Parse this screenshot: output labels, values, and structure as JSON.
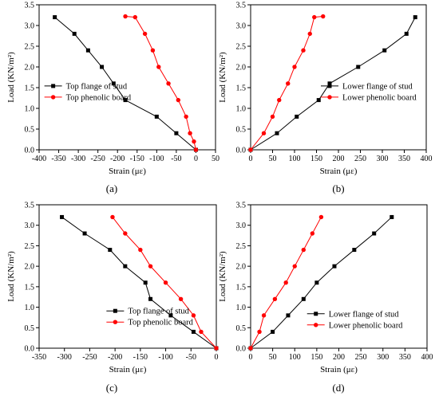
{
  "chart_data": [
    {
      "type": "line",
      "panel_label": "(a)",
      "xlabel": "Strain (με)",
      "ylabel": "Load (KN/m²)",
      "xlim": [
        -400,
        50
      ],
      "ylim": [
        0,
        3.5
      ],
      "xticks": [
        -400,
        -350,
        -300,
        -250,
        -200,
        -150,
        -100,
        -50,
        0,
        50
      ],
      "yticks": [
        0.0,
        0.5,
        1.0,
        1.5,
        2.0,
        2.5,
        3.0,
        3.5
      ],
      "ytick_labels": [
        "0.0",
        "0.5",
        "1.0",
        "1.5",
        "2.0",
        "2.5",
        "3.0",
        "3.5"
      ],
      "legend_position": "center-left",
      "series": [
        {
          "name": "Top flange of stud",
          "color": "#000000",
          "marker": "square",
          "x": [
            0,
            -50,
            -100,
            -180,
            -210,
            -240,
            -275,
            -310,
            -360
          ],
          "y": [
            0,
            0.4,
            0.8,
            1.2,
            1.6,
            2.0,
            2.4,
            2.8,
            3.2
          ]
        },
        {
          "name": "Top phenolic board",
          "color": "#ff0000",
          "marker": "circle",
          "x": [
            0,
            -5,
            -15,
            -25,
            -45,
            -70,
            -95,
            -110,
            -130,
            -155,
            -180
          ],
          "y": [
            0,
            0.2,
            0.4,
            0.8,
            1.2,
            1.6,
            2.0,
            2.4,
            2.8,
            3.2,
            3.22
          ]
        }
      ]
    },
    {
      "type": "line",
      "panel_label": "(b)",
      "xlabel": "Strain (με)",
      "ylabel": "Load (KN/m²)",
      "xlim": [
        0,
        400
      ],
      "ylim": [
        0,
        3.5
      ],
      "xticks": [
        0,
        50,
        100,
        150,
        200,
        250,
        300,
        350,
        400
      ],
      "yticks": [
        0.0,
        0.5,
        1.0,
        1.5,
        2.0,
        2.5,
        3.0,
        3.5
      ],
      "ytick_labels": [
        "0.0",
        "0.5",
        "1.0",
        "1.5",
        "2.0",
        "2.5",
        "3.0",
        "3.5"
      ],
      "legend_position": "center-right",
      "series": [
        {
          "name": "Lower flange of stud",
          "color": "#000000",
          "marker": "square",
          "x": [
            0,
            60,
            105,
            155,
            180,
            245,
            305,
            355,
            375
          ],
          "y": [
            0,
            0.4,
            0.8,
            1.2,
            1.6,
            2.0,
            2.4,
            2.8,
            3.2
          ]
        },
        {
          "name": "Lower phenolic board",
          "color": "#ff0000",
          "marker": "circle",
          "x": [
            0,
            30,
            50,
            65,
            85,
            100,
            120,
            135,
            145,
            165
          ],
          "y": [
            0,
            0.4,
            0.8,
            1.2,
            1.6,
            2.0,
            2.4,
            2.8,
            3.2,
            3.22
          ]
        }
      ]
    },
    {
      "type": "line",
      "panel_label": "(c)",
      "xlabel": "Strain (με)",
      "ylabel": "Load (KN/m²)",
      "xlim": [
        -350,
        0
      ],
      "ylim": [
        0,
        3.5
      ],
      "xticks": [
        -350,
        -300,
        -250,
        -200,
        -150,
        -100,
        -50,
        0
      ],
      "yticks": [
        0.0,
        0.5,
        1.0,
        1.5,
        2.0,
        2.5,
        3.0,
        3.5
      ],
      "ytick_labels": [
        "0.0",
        "0.5",
        "1.0",
        "1.5",
        "2.0",
        "2.5",
        "3.0",
        "3.5"
      ],
      "legend_position": "bottom-left",
      "series": [
        {
          "name": "Top flange of stud",
          "color": "#000000",
          "marker": "square",
          "x": [
            0,
            -45,
            -90,
            -130,
            -140,
            -180,
            -210,
            -260,
            -305
          ],
          "y": [
            0,
            0.4,
            0.8,
            1.2,
            1.6,
            2.0,
            2.4,
            2.8,
            3.2
          ]
        },
        {
          "name": "Top phenolic board",
          "color": "#ff0000",
          "marker": "circle",
          "x": [
            0,
            -30,
            -45,
            -70,
            -100,
            -130,
            -150,
            -180,
            -205
          ],
          "y": [
            0,
            0.4,
            0.8,
            1.2,
            1.6,
            2.0,
            2.4,
            2.8,
            3.2
          ]
        }
      ]
    },
    {
      "type": "line",
      "panel_label": "(d)",
      "xlabel": "Strain (με)",
      "ylabel": "Load (KN/m²)",
      "xlim": [
        0,
        400
      ],
      "ylim": [
        0,
        3.5
      ],
      "xticks": [
        0,
        50,
        100,
        150,
        200,
        250,
        300,
        350,
        400
      ],
      "yticks": [
        0.0,
        0.5,
        1.0,
        1.5,
        2.0,
        2.5,
        3.0,
        3.5
      ],
      "ytick_labels": [
        "0.0",
        "0.5",
        "1.0",
        "1.5",
        "2.0",
        "2.5",
        "3.0",
        "3.5"
      ],
      "legend_position": "bottom-right",
      "series": [
        {
          "name": "Lower flange of stud",
          "color": "#000000",
          "marker": "square",
          "x": [
            0,
            50,
            85,
            120,
            150,
            190,
            235,
            280,
            320
          ],
          "y": [
            0,
            0.4,
            0.8,
            1.2,
            1.6,
            2.0,
            2.4,
            2.8,
            3.2
          ]
        },
        {
          "name": "Lower phenolic board",
          "color": "#ff0000",
          "marker": "circle",
          "x": [
            0,
            20,
            30,
            55,
            80,
            100,
            120,
            140,
            160
          ],
          "y": [
            0,
            0.4,
            0.8,
            1.2,
            1.6,
            2.0,
            2.4,
            2.8,
            3.2
          ]
        }
      ]
    }
  ]
}
